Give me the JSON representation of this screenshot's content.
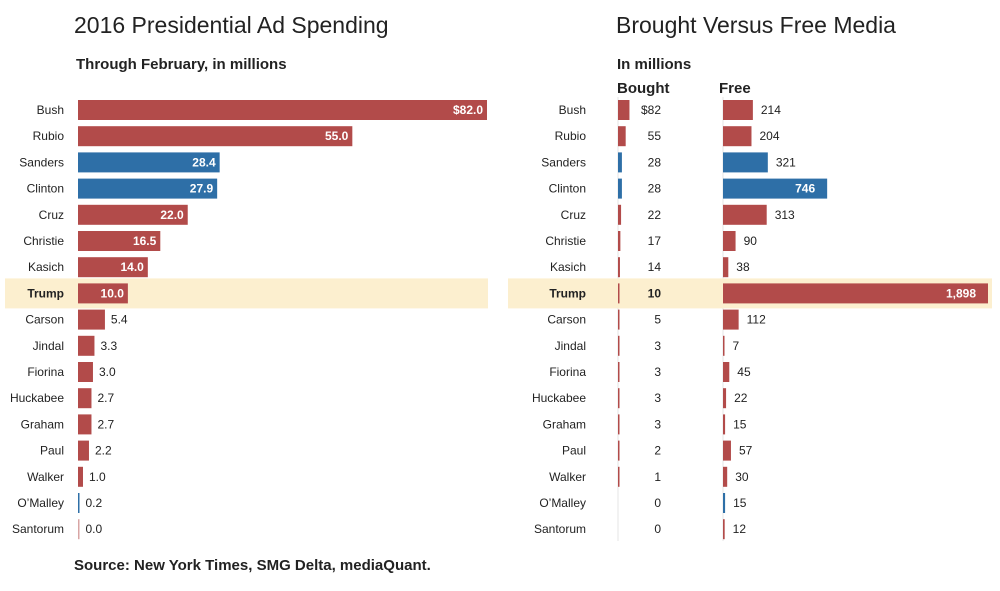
{
  "colors": {
    "republican": "#b24b4a",
    "democrat": "#2e6fa7",
    "highlight": "#fcefcf"
  },
  "source": "Source: New York Times, SMG Delta, mediaQuant.",
  "chart_data": [
    {
      "type": "bar",
      "orientation": "horizontal",
      "title": "2016 Presidential Ad Spending",
      "subtitle": "Through February, in millions",
      "categories": [
        "Bush",
        "Rubio",
        "Sanders",
        "Clinton",
        "Cruz",
        "Christie",
        "Kasich",
        "Trump",
        "Carson",
        "Jindal",
        "Fiorina",
        "Huckabee",
        "Graham",
        "Paul",
        "Walker",
        "O’Malley",
        "Santorum"
      ],
      "party": [
        "R",
        "R",
        "D",
        "D",
        "R",
        "R",
        "R",
        "R",
        "R",
        "R",
        "R",
        "R",
        "R",
        "R",
        "R",
        "D",
        "R"
      ],
      "highlight": "Trump",
      "values": [
        82.0,
        55.0,
        28.4,
        27.9,
        22.0,
        16.5,
        14.0,
        10.0,
        5.4,
        3.3,
        3.0,
        2.7,
        2.7,
        2.2,
        1.0,
        0.2,
        0.0
      ],
      "value_labels": [
        "$82.0",
        "55.0",
        "28.4",
        "27.9",
        "22.0",
        "16.5",
        "14.0",
        "10.0",
        "5.4",
        "3.3",
        "3.0",
        "2.7",
        "2.7",
        "2.2",
        "1.0",
        "0.2",
        "0.0"
      ],
      "xlim": [
        0,
        82
      ],
      "grid": false
    },
    {
      "type": "bar",
      "orientation": "horizontal",
      "title": "Brought Versus Free Media",
      "subtitle": "In millions",
      "categories": [
        "Bush",
        "Rubio",
        "Sanders",
        "Clinton",
        "Cruz",
        "Christie",
        "Kasich",
        "Trump",
        "Carson",
        "Jindal",
        "Fiorina",
        "Huckabee",
        "Graham",
        "Paul",
        "Walker",
        "O’Malley",
        "Santorum"
      ],
      "party": [
        "R",
        "R",
        "D",
        "D",
        "R",
        "R",
        "R",
        "R",
        "R",
        "R",
        "R",
        "R",
        "R",
        "R",
        "R",
        "D",
        "R"
      ],
      "highlight": "Trump",
      "series": [
        {
          "name": "Bought",
          "values": [
            82,
            55,
            28,
            28,
            22,
            17,
            14,
            10,
            5,
            3,
            3,
            3,
            3,
            2,
            1,
            0,
            0
          ],
          "value_labels": [
            "$82",
            "55",
            "28",
            "28",
            "22",
            "17",
            "14",
            "10",
            "5",
            "3",
            "3",
            "3",
            "3",
            "2",
            "1",
            "0",
            "0"
          ]
        },
        {
          "name": "Free",
          "values": [
            214,
            204,
            321,
            746,
            313,
            90,
            38,
            1898,
            112,
            7,
            45,
            22,
            15,
            57,
            30,
            15,
            12
          ],
          "value_labels": [
            "214",
            "204",
            "321",
            "746",
            "313",
            "90",
            "38",
            "1,898",
            "112",
            "7",
            "45",
            "22",
            "15",
            "57",
            "30",
            "15",
            "12"
          ]
        }
      ],
      "xlim": [
        0,
        1898
      ],
      "grid": false
    }
  ]
}
